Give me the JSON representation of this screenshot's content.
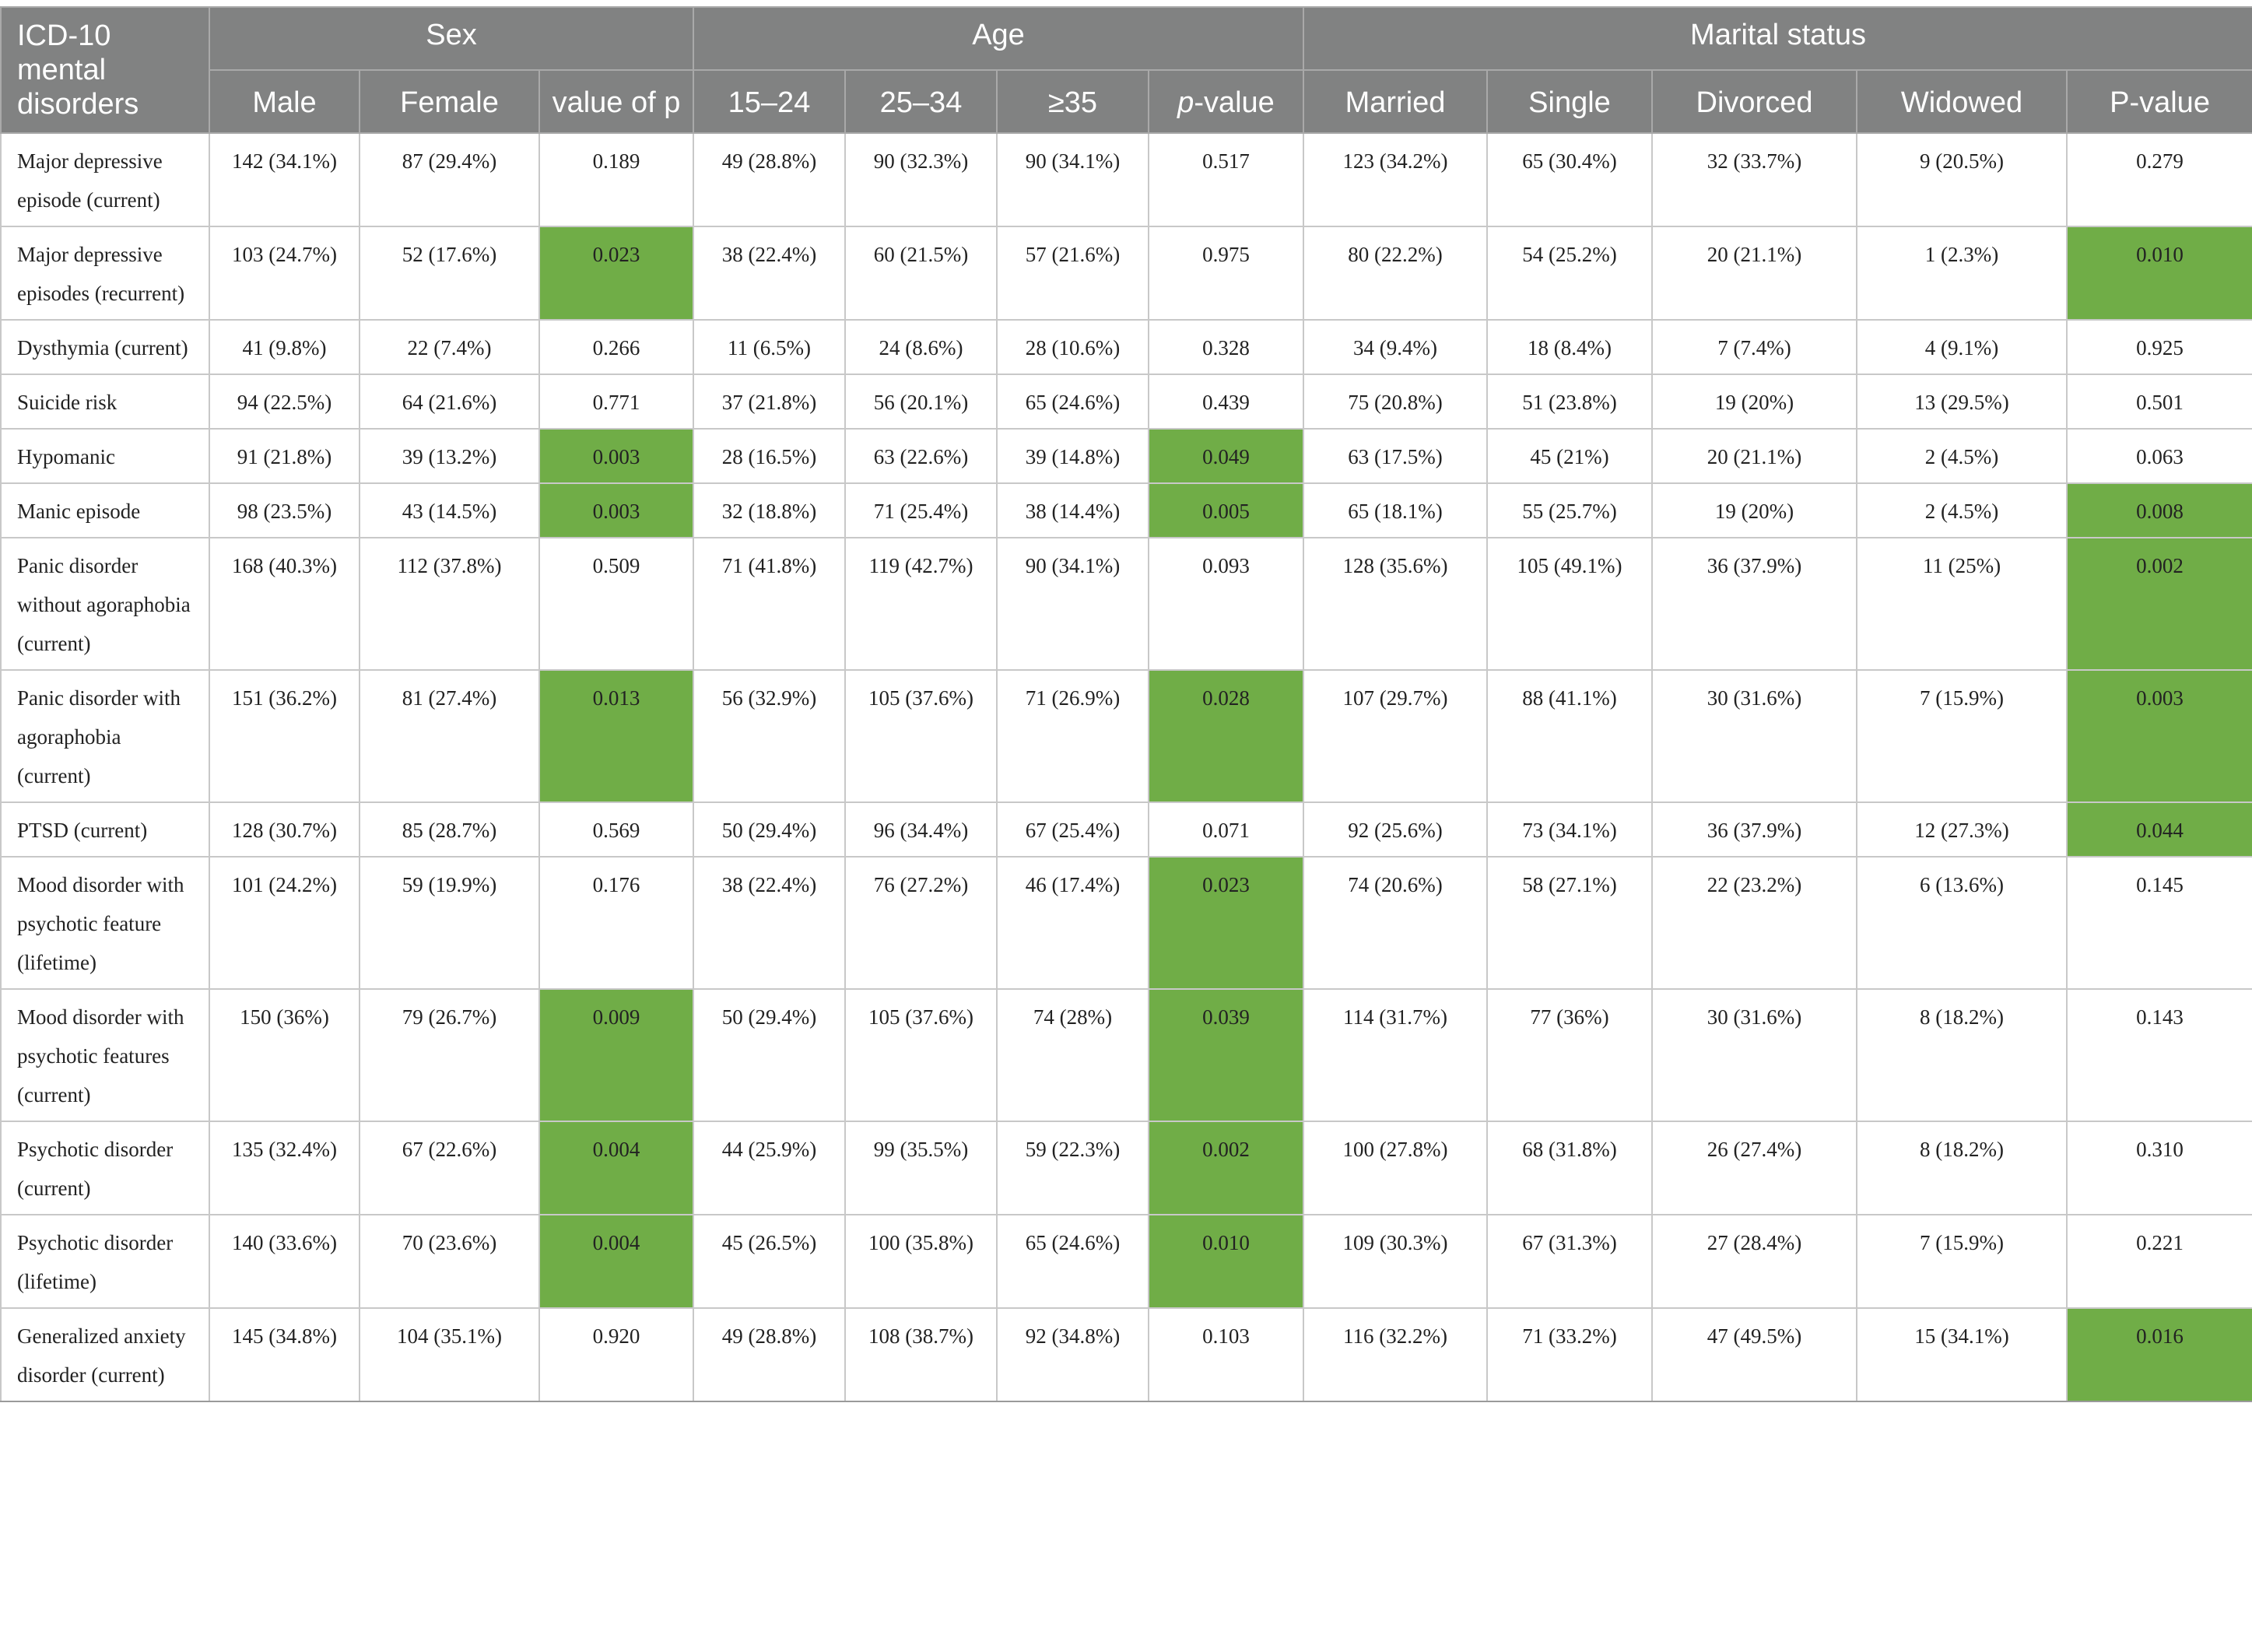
{
  "header": {
    "corner": "ICD-10 mental disorders",
    "groups": {
      "sex": "Sex",
      "age": "Age",
      "marital": "Marital status"
    },
    "columns": {
      "male": "Male",
      "female": "Female",
      "sex_p": "value of p",
      "age1": "15–24",
      "age2": "25–34",
      "age3": "≥35",
      "age_p_italic": "p",
      "age_p_rest": "-value",
      "married": "Married",
      "single": "Single",
      "divorced": "Divorced",
      "widowed": "Widowed",
      "marital_p": "P-value"
    }
  },
  "colors": {
    "header_bg": "#818282",
    "significant": "#70ad47"
  },
  "rows": [
    {
      "label": "Major depressive episode (current)",
      "male": "142 (34.1%)",
      "female": "87 (29.4%)",
      "sex_p": "0.189",
      "age1": "49 (28.8%)",
      "age2": "90 (32.3%)",
      "age3": "90 (34.1%)",
      "age_p": "0.517",
      "married": "123 (34.2%)",
      "single": "65 (30.4%)",
      "divorced": "32 (33.7%)",
      "widowed": "9 (20.5%)",
      "marital_p": "0.279"
    },
    {
      "label": "Major depressive episodes (recurrent)",
      "male": "103 (24.7%)",
      "female": "52 (17.6%)",
      "sex_p": "0.023",
      "age1": "38 (22.4%)",
      "age2": "60 (21.5%)",
      "age3": "57 (21.6%)",
      "age_p": "0.975",
      "married": "80 (22.2%)",
      "single": "54 (25.2%)",
      "divorced": "20 (21.1%)",
      "widowed": "1 (2.3%)",
      "marital_p": "0.010"
    },
    {
      "label": "Dysthymia (current)",
      "male": "41 (9.8%)",
      "female": "22 (7.4%)",
      "sex_p": "0.266",
      "age1": "11 (6.5%)",
      "age2": "24 (8.6%)",
      "age3": "28 (10.6%)",
      "age_p": "0.328",
      "married": "34 (9.4%)",
      "single": "18 (8.4%)",
      "divorced": "7 (7.4%)",
      "widowed": "4 (9.1%)",
      "marital_p": "0.925"
    },
    {
      "label": "Suicide risk",
      "male": "94 (22.5%)",
      "female": "64 (21.6%)",
      "sex_p": "0.771",
      "age1": "37 (21.8%)",
      "age2": "56 (20.1%)",
      "age3": "65 (24.6%)",
      "age_p": "0.439",
      "married": "75 (20.8%)",
      "single": "51 (23.8%)",
      "divorced": "19 (20%)",
      "widowed": "13 (29.5%)",
      "marital_p": "0.501"
    },
    {
      "label": "Hypomanic",
      "male": "91 (21.8%)",
      "female": "39 (13.2%)",
      "sex_p": "0.003",
      "age1": "28 (16.5%)",
      "age2": "63 (22.6%)",
      "age3": "39 (14.8%)",
      "age_p": "0.049",
      "married": "63 (17.5%)",
      "single": "45 (21%)",
      "divorced": "20 (21.1%)",
      "widowed": "2 (4.5%)",
      "marital_p": "0.063"
    },
    {
      "label": "Manic episode",
      "male": "98 (23.5%)",
      "female": "43 (14.5%)",
      "sex_p": "0.003",
      "age1": "32 (18.8%)",
      "age2": "71 (25.4%)",
      "age3": "38 (14.4%)",
      "age_p": "0.005",
      "married": "65 (18.1%)",
      "single": "55 (25.7%)",
      "divorced": "19 (20%)",
      "widowed": "2 (4.5%)",
      "marital_p": "0.008"
    },
    {
      "label": "Panic disorder without agoraphobia (current)",
      "male": "168 (40.3%)",
      "female": "112 (37.8%)",
      "sex_p": "0.509",
      "age1": "71 (41.8%)",
      "age2": "119 (42.7%)",
      "age3": "90 (34.1%)",
      "age_p": "0.093",
      "married": "128 (35.6%)",
      "single": "105 (49.1%)",
      "divorced": "36 (37.9%)",
      "widowed": "11 (25%)",
      "marital_p": "0.002"
    },
    {
      "label": "Panic disorder with agoraphobia (current)",
      "male": "151 (36.2%)",
      "female": "81 (27.4%)",
      "sex_p": "0.013",
      "age1": "56 (32.9%)",
      "age2": "105 (37.6%)",
      "age3": "71 (26.9%)",
      "age_p": "0.028",
      "married": "107 (29.7%)",
      "single": "88 (41.1%)",
      "divorced": "30 (31.6%)",
      "widowed": "7 (15.9%)",
      "marital_p": "0.003"
    },
    {
      "label": "PTSD (current)",
      "male": "128 (30.7%)",
      "female": "85 (28.7%)",
      "sex_p": "0.569",
      "age1": "50 (29.4%)",
      "age2": "96 (34.4%)",
      "age3": "67 (25.4%)",
      "age_p": "0.071",
      "married": "92 (25.6%)",
      "single": "73 (34.1%)",
      "divorced": "36 (37.9%)",
      "widowed": "12 (27.3%)",
      "marital_p": "0.044"
    },
    {
      "label": "Mood disorder with psychotic feature (lifetime)",
      "male": "101 (24.2%)",
      "female": "59 (19.9%)",
      "sex_p": "0.176",
      "age1": "38 (22.4%)",
      "age2": "76 (27.2%)",
      "age3": "46 (17.4%)",
      "age_p": "0.023",
      "married": "74 (20.6%)",
      "single": "58 (27.1%)",
      "divorced": "22 (23.2%)",
      "widowed": "6 (13.6%)",
      "marital_p": "0.145"
    },
    {
      "label": "Mood disorder with psychotic features (current)",
      "male": "150 (36%)",
      "female": "79 (26.7%)",
      "sex_p": "0.009",
      "age1": "50 (29.4%)",
      "age2": "105 (37.6%)",
      "age3": "74 (28%)",
      "age_p": "0.039",
      "married": "114 (31.7%)",
      "single": "77 (36%)",
      "divorced": "30 (31.6%)",
      "widowed": "8 (18.2%)",
      "marital_p": "0.143"
    },
    {
      "label": "Psychotic disorder (current)",
      "male": "135 (32.4%)",
      "female": "67 (22.6%)",
      "sex_p": "0.004",
      "age1": "44 (25.9%)",
      "age2": "99 (35.5%)",
      "age3": "59 (22.3%)",
      "age_p": "0.002",
      "married": "100 (27.8%)",
      "single": "68 (31.8%)",
      "divorced": "26 (27.4%)",
      "widowed": "8 (18.2%)",
      "marital_p": "0.310"
    },
    {
      "label": "Psychotic disorder (lifetime)",
      "male": "140 (33.6%)",
      "female": "70 (23.6%)",
      "sex_p": "0.004",
      "age1": "45 (26.5%)",
      "age2": "100 (35.8%)",
      "age3": "65 (24.6%)",
      "age_p": "0.010",
      "married": "109 (30.3%)",
      "single": "67 (31.3%)",
      "divorced": "27 (28.4%)",
      "widowed": "7 (15.9%)",
      "marital_p": "0.221"
    },
    {
      "label": "Generalized anxiety disorder (current)",
      "male": "145 (34.8%)",
      "female": "104 (35.1%)",
      "sex_p": "0.920",
      "age1": "49 (28.8%)",
      "age2": "108 (38.7%)",
      "age3": "92 (34.8%)",
      "age_p": "0.103",
      "married": "116 (32.2%)",
      "single": "71 (33.2%)",
      "divorced": "47 (49.5%)",
      "widowed": "15 (34.1%)",
      "marital_p": "0.016"
    }
  ]
}
